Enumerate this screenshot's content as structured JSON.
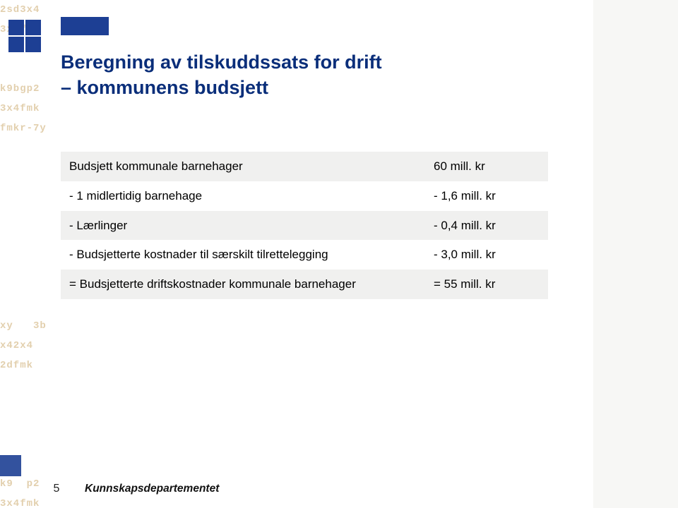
{
  "colors": {
    "title": "#0a2e7a",
    "accent": "#1d3f94",
    "row_alt_bg": "#f0f0ef",
    "right_strip_bg": "#f7f7f5",
    "math_text": "#cba96b",
    "body_text": "#111111"
  },
  "decor": {
    "math_lines": "2sd3x4\n3x4fmk\n\n\nk9bgp2\n3x4fmk\nfmkr-7y\n\n\n\n\n\n\n\n\n\nxy   3b\nx42x4\n2dfmk\n\n\n\n\n\nk9  p2\n3x4fmk"
  },
  "title_line1": "Beregning av tilskuddssats for drift",
  "title_line2": "– kommunens budsjett",
  "rows": [
    {
      "label": "Budsjett kommunale barnehager",
      "value": "60 mill. kr"
    },
    {
      "label": "- 1 midlertidig barnehage",
      "value": "- 1,6 mill. kr"
    },
    {
      "label": "- Lærlinger",
      "value": "- 0,4 mill. kr"
    },
    {
      "label": "- Budsjetterte kostnader til særskilt tilrettelegging",
      "value": "- 3,0 mill. kr"
    },
    {
      "label": "= Budsjetterte driftskostnader kommunale barnehager",
      "value": "= 55 mill. kr"
    }
  ],
  "footer": {
    "page": "5",
    "dept": "Kunnskapsdepartementet"
  }
}
